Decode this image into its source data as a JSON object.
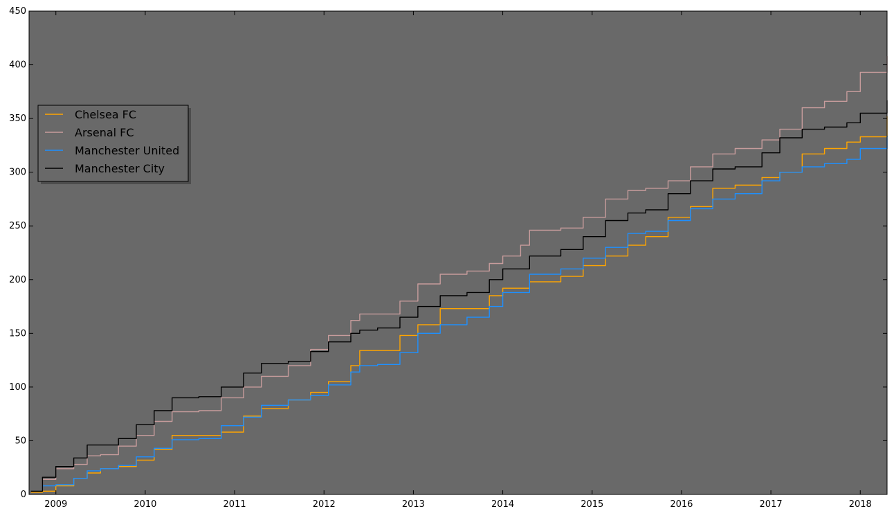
{
  "chart_data": {
    "type": "line",
    "title": "",
    "xlabel": "",
    "ylabel": "",
    "xlim": [
      2008.7,
      2018.3
    ],
    "ylim": [
      0,
      450
    ],
    "x_ticks": [
      2009,
      2010,
      2011,
      2012,
      2013,
      2014,
      2015,
      2016,
      2017,
      2018
    ],
    "x_tick_labels": [
      "2009",
      "2010",
      "2011",
      "2012",
      "2013",
      "2014",
      "2015",
      "2016",
      "2017",
      "2018"
    ],
    "y_ticks": [
      0,
      50,
      100,
      150,
      200,
      250,
      300,
      350,
      400,
      450
    ],
    "y_tick_labels": [
      "0",
      "50",
      "100",
      "150",
      "200",
      "250",
      "300",
      "350",
      "400",
      "450"
    ],
    "grid": false,
    "legend_position": "center-left",
    "plot_background": "#696969",
    "series": [
      {
        "name": "Chelsea FC",
        "color": "#FFA500",
        "x": [
          2008.72,
          2008.85,
          2009.0,
          2009.2,
          2009.35,
          2009.5,
          2009.7,
          2009.9,
          2010.1,
          2010.3,
          2010.6,
          2010.85,
          2011.1,
          2011.3,
          2011.6,
          2011.85,
          2012.05,
          2012.3,
          2012.4,
          2012.6,
          2012.85,
          2013.05,
          2013.3,
          2013.6,
          2013.85,
          2014.0,
          2014.3,
          2014.65,
          2014.9,
          2015.15,
          2015.4,
          2015.6,
          2015.85,
          2016.1,
          2016.35,
          2016.6,
          2016.9,
          2017.1,
          2017.35,
          2017.6,
          2017.85,
          2018.0,
          2018.3
        ],
        "values": [
          2,
          3,
          8,
          15,
          20,
          24,
          26,
          32,
          42,
          55,
          55,
          58,
          73,
          80,
          88,
          95,
          105,
          120,
          134,
          134,
          148,
          158,
          173,
          173,
          185,
          192,
          198,
          203,
          213,
          222,
          232,
          240,
          258,
          268,
          285,
          288,
          295,
          300,
          317,
          322,
          328,
          333,
          352
        ]
      },
      {
        "name": "Arsenal FC",
        "color": "#C79C9C",
        "x": [
          2008.72,
          2008.85,
          2009.0,
          2009.2,
          2009.35,
          2009.5,
          2009.7,
          2009.9,
          2010.1,
          2010.3,
          2010.6,
          2010.85,
          2011.1,
          2011.3,
          2011.6,
          2011.85,
          2012.05,
          2012.3,
          2012.4,
          2012.6,
          2012.85,
          2013.05,
          2013.3,
          2013.6,
          2013.85,
          2014.0,
          2014.2,
          2014.3,
          2014.65,
          2014.9,
          2015.15,
          2015.4,
          2015.6,
          2015.85,
          2016.1,
          2016.35,
          2016.6,
          2016.9,
          2017.1,
          2017.35,
          2017.6,
          2017.85,
          2018.0,
          2018.3
        ],
        "values": [
          3,
          14,
          24,
          28,
          36,
          37,
          45,
          55,
          68,
          77,
          78,
          90,
          100,
          110,
          120,
          135,
          148,
          162,
          168,
          168,
          180,
          196,
          205,
          208,
          215,
          222,
          232,
          246,
          248,
          258,
          275,
          283,
          285,
          292,
          305,
          317,
          322,
          330,
          340,
          360,
          366,
          375,
          393,
          408
        ]
      },
      {
        "name": "Manchester United",
        "color": "#1E90FF",
        "x": [
          2008.72,
          2008.85,
          2009.0,
          2009.2,
          2009.35,
          2009.5,
          2009.7,
          2009.9,
          2010.1,
          2010.3,
          2010.6,
          2010.85,
          2011.1,
          2011.3,
          2011.6,
          2011.85,
          2012.05,
          2012.3,
          2012.4,
          2012.6,
          2012.85,
          2013.05,
          2013.3,
          2013.6,
          2013.85,
          2014.0,
          2014.3,
          2014.65,
          2014.9,
          2015.15,
          2015.4,
          2015.6,
          2015.85,
          2016.1,
          2016.35,
          2016.6,
          2016.9,
          2017.1,
          2017.35,
          2017.6,
          2017.85,
          2018.0,
          2018.3
        ],
        "values": [
          3,
          8,
          9,
          15,
          22,
          24,
          27,
          35,
          43,
          51,
          52,
          64,
          72,
          83,
          88,
          92,
          102,
          114,
          120,
          121,
          132,
          150,
          158,
          165,
          175,
          188,
          205,
          210,
          220,
          230,
          243,
          245,
          255,
          266,
          275,
          280,
          292,
          300,
          305,
          308,
          312,
          322,
          334
        ]
      },
      {
        "name": "Manchester City",
        "color": "#000000",
        "x": [
          2008.72,
          2008.85,
          2009.0,
          2009.2,
          2009.35,
          2009.5,
          2009.7,
          2009.9,
          2010.1,
          2010.3,
          2010.6,
          2010.85,
          2011.1,
          2011.3,
          2011.6,
          2011.85,
          2012.05,
          2012.3,
          2012.4,
          2012.6,
          2012.85,
          2013.05,
          2013.3,
          2013.6,
          2013.85,
          2014.0,
          2014.3,
          2014.65,
          2014.9,
          2015.15,
          2015.4,
          2015.6,
          2015.85,
          2016.1,
          2016.35,
          2016.6,
          2016.9,
          2017.1,
          2017.35,
          2017.6,
          2017.85,
          2018.0,
          2018.3
        ],
        "values": [
          3,
          16,
          26,
          34,
          46,
          46,
          52,
          65,
          78,
          90,
          91,
          100,
          113,
          122,
          124,
          133,
          142,
          150,
          153,
          155,
          165,
          175,
          185,
          188,
          200,
          210,
          222,
          228,
          240,
          255,
          262,
          265,
          280,
          292,
          303,
          305,
          318,
          332,
          340,
          342,
          346,
          355,
          367
        ]
      }
    ]
  }
}
